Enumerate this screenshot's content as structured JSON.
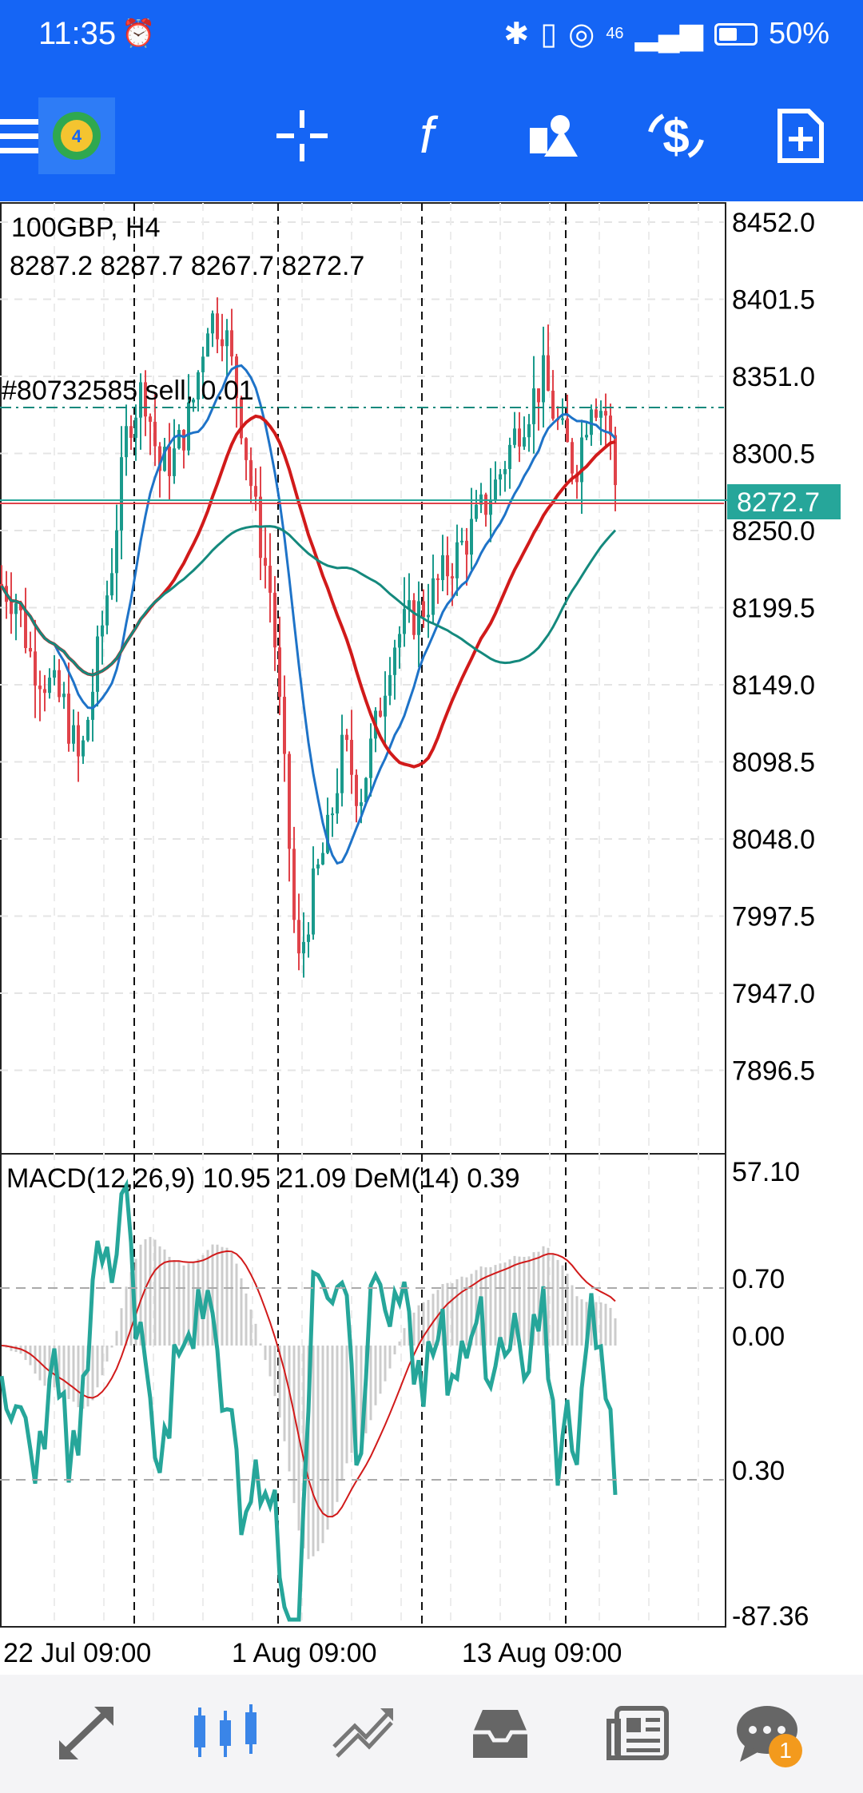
{
  "status_bar": {
    "time": "11:35",
    "signal_label": "46",
    "battery": "50%"
  },
  "toolbar": {
    "icons": [
      "menu-icon",
      "metatrader-logo",
      "crosshair-icon",
      "indicators-icon",
      "objects-icon",
      "trade-icon",
      "new-order-icon"
    ]
  },
  "chart": {
    "symbol_line": "100GBP, H4",
    "ohlc_line": "8287.2 8287.7 8267.7 8272.7",
    "order_label": "#80732585 sell, 0.01",
    "current_price": "8272.7",
    "price_ticks": [
      "8452.0",
      "8401.5",
      "8351.0",
      "8300.5",
      "8250.0",
      "8199.5",
      "8149.0",
      "8098.5",
      "8048.0",
      "7997.5",
      "7947.0",
      "7896.5"
    ],
    "indicator_label": "MACD(12,26,9) 10.95 21.09 DeM(14) 0.39",
    "indicator_ticks": [
      "57.10",
      "0.70",
      "0.00",
      "0.30",
      "-87.36"
    ],
    "time_labels": [
      "22 Jul 09:00",
      "1 Aug 09:00",
      "13 Aug 09:00"
    ],
    "colors": {
      "bull": "#1a9a8c",
      "bear": "#e0434a",
      "ma_fast": "#1e73c8",
      "ma_mid": "#d11a1a",
      "ma_slow": "#14897d",
      "price_badge": "#26a69a"
    }
  },
  "bottom_nav": {
    "items": [
      "quotes-icon",
      "chart-icon",
      "trade-icon",
      "history-icon",
      "news-icon",
      "messages-icon"
    ],
    "messages_badge": "1"
  }
}
